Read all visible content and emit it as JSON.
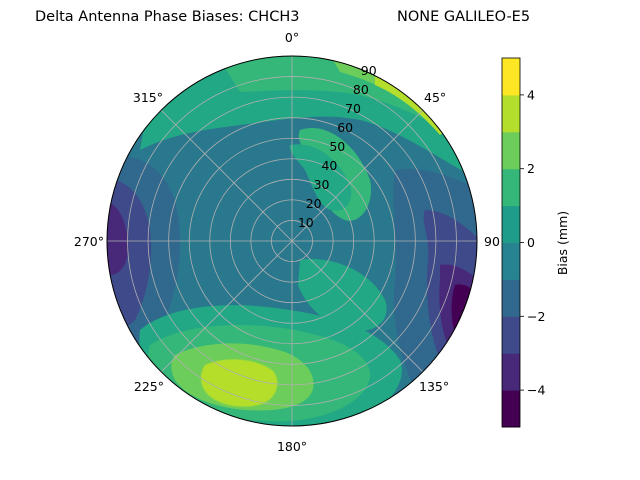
{
  "chart_data": {
    "type": "heatmap",
    "projection": "polar",
    "title_left": "Delta Antenna Phase Biases: CHCH3",
    "title_right": "NONE GALILEO-E5",
    "theta_ticks": [
      "0°",
      "45°",
      "90",
      "135°",
      "180°",
      "225°",
      "270°",
      "315°"
    ],
    "theta_zero": "top",
    "theta_direction": "clockwise",
    "r_ticks": [
      "10",
      "20",
      "30",
      "40",
      "50",
      "60",
      "70",
      "80",
      "90"
    ],
    "r_range": [
      0,
      90
    ],
    "grid": true,
    "colorbar": {
      "label": "Bias (mm)",
      "ticks": [
        "−4",
        "−2",
        "0",
        "2",
        "4"
      ],
      "range": [
        -5,
        5
      ],
      "levels": [
        -5,
        -4,
        -3,
        -2,
        -1,
        0,
        1,
        2,
        3,
        4,
        5
      ],
      "colors": [
        "#440154",
        "#482979",
        "#3e4a89",
        "#31688e",
        "#26838f",
        "#1f9d8a",
        "#35b779",
        "#6ccd5a",
        "#b4de2c",
        "#fde725"
      ]
    },
    "field": {
      "description": "approximate azimuth(deg)/zenith-radius samples of bias in mm",
      "samples": [
        {
          "az": 20,
          "r": 85,
          "value": 2.7
        },
        {
          "az": 40,
          "r": 88,
          "value": 3.6
        },
        {
          "az": 35,
          "r": 55,
          "value": 2.1
        },
        {
          "az": 60,
          "r": 35,
          "value": 2.4
        },
        {
          "az": 90,
          "r": 75,
          "value": -1.2
        },
        {
          "az": 110,
          "r": 85,
          "value": -3.6
        },
        {
          "az": 120,
          "r": 88,
          "value": -4.3
        },
        {
          "az": 140,
          "r": 70,
          "value": -1.8
        },
        {
          "az": 200,
          "r": 65,
          "value": 4.3
        },
        {
          "az": 210,
          "r": 60,
          "value": 3.8
        },
        {
          "az": 230,
          "r": 80,
          "value": 2.3
        },
        {
          "az": 270,
          "r": 80,
          "value": -2.5
        },
        {
          "az": 275,
          "r": 90,
          "value": -3.5
        },
        {
          "az": 300,
          "r": 75,
          "value": -1.6
        },
        {
          "az": 330,
          "r": 60,
          "value": -1.3
        },
        {
          "az": 345,
          "r": 80,
          "value": 1.5
        },
        {
          "az": 0,
          "r": 10,
          "value": -0.2
        }
      ]
    }
  }
}
